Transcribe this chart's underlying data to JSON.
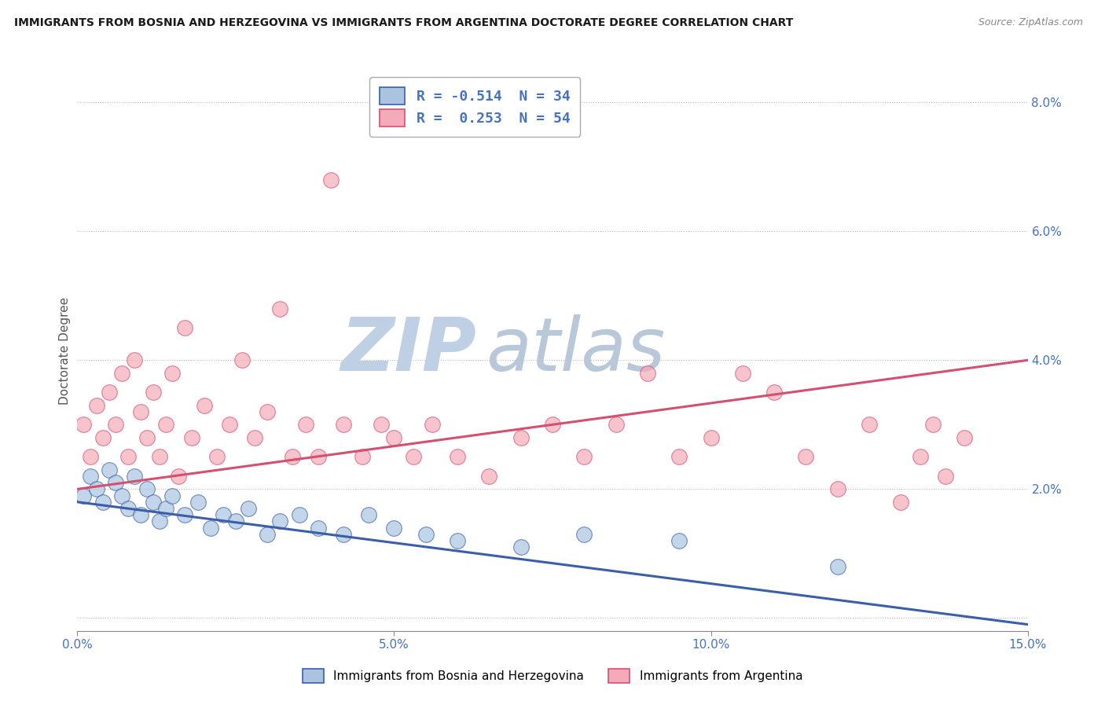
{
  "title": "IMMIGRANTS FROM BOSNIA AND HERZEGOVINA VS IMMIGRANTS FROM ARGENTINA DOCTORATE DEGREE CORRELATION CHART",
  "source": "Source: ZipAtlas.com",
  "ylabel": "Doctorate Degree",
  "xlim": [
    0.0,
    0.15
  ],
  "ylim": [
    -0.002,
    0.085
  ],
  "blue_R": -0.514,
  "blue_N": 34,
  "pink_R": 0.253,
  "pink_N": 54,
  "blue_color": "#aac4e0",
  "pink_color": "#f4aab8",
  "blue_line_color": "#3a5fa8",
  "pink_line_color": "#d45070",
  "legend_blue_label": "R = -0.514  N = 34",
  "legend_pink_label": "R =  0.253  N = 54",
  "legend_blue_face": "#aac4e0",
  "legend_pink_face": "#f4aab8",
  "watermark_zip": "ZIP",
  "watermark_atlas": "atlas",
  "watermark_color_zip": "#c0d0e4",
  "watermark_color_atlas": "#b8c8d8",
  "grid_color": "#bbbbbb",
  "background_color": "#ffffff",
  "blue_line_y0": 0.018,
  "blue_line_y1": -0.001,
  "pink_line_y0": 0.02,
  "pink_line_y1": 0.04,
  "blue_scatter_x": [
    0.001,
    0.002,
    0.003,
    0.004,
    0.005,
    0.006,
    0.007,
    0.008,
    0.009,
    0.01,
    0.011,
    0.012,
    0.013,
    0.014,
    0.015,
    0.017,
    0.019,
    0.021,
    0.023,
    0.025,
    0.027,
    0.03,
    0.032,
    0.035,
    0.038,
    0.042,
    0.046,
    0.05,
    0.055,
    0.06,
    0.07,
    0.08,
    0.095,
    0.12
  ],
  "blue_scatter_y": [
    0.019,
    0.022,
    0.02,
    0.018,
    0.023,
    0.021,
    0.019,
    0.017,
    0.022,
    0.016,
    0.02,
    0.018,
    0.015,
    0.017,
    0.019,
    0.016,
    0.018,
    0.014,
    0.016,
    0.015,
    0.017,
    0.013,
    0.015,
    0.016,
    0.014,
    0.013,
    0.016,
    0.014,
    0.013,
    0.012,
    0.011,
    0.013,
    0.012,
    0.008
  ],
  "pink_scatter_x": [
    0.001,
    0.002,
    0.003,
    0.004,
    0.005,
    0.006,
    0.007,
    0.008,
    0.009,
    0.01,
    0.011,
    0.012,
    0.013,
    0.014,
    0.015,
    0.016,
    0.017,
    0.018,
    0.02,
    0.022,
    0.024,
    0.026,
    0.028,
    0.03,
    0.032,
    0.034,
    0.036,
    0.038,
    0.04,
    0.042,
    0.045,
    0.048,
    0.05,
    0.053,
    0.056,
    0.06,
    0.065,
    0.07,
    0.075,
    0.08,
    0.085,
    0.09,
    0.095,
    0.1,
    0.105,
    0.11,
    0.115,
    0.12,
    0.125,
    0.13,
    0.133,
    0.135,
    0.137,
    0.14
  ],
  "pink_scatter_y": [
    0.03,
    0.025,
    0.033,
    0.028,
    0.035,
    0.03,
    0.038,
    0.025,
    0.04,
    0.032,
    0.028,
    0.035,
    0.025,
    0.03,
    0.038,
    0.022,
    0.045,
    0.028,
    0.033,
    0.025,
    0.03,
    0.04,
    0.028,
    0.032,
    0.048,
    0.025,
    0.03,
    0.025,
    0.068,
    0.03,
    0.025,
    0.03,
    0.028,
    0.025,
    0.03,
    0.025,
    0.022,
    0.028,
    0.03,
    0.025,
    0.03,
    0.038,
    0.025,
    0.028,
    0.038,
    0.035,
    0.025,
    0.02,
    0.03,
    0.018,
    0.025,
    0.03,
    0.022,
    0.028
  ]
}
